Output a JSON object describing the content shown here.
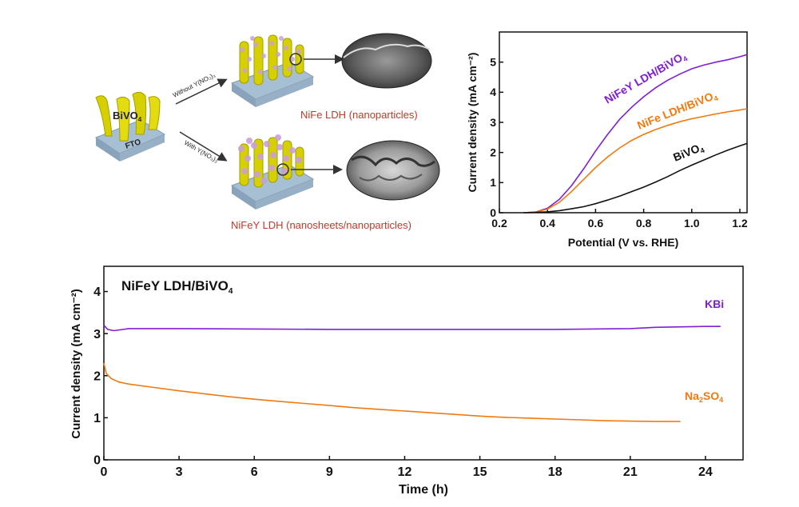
{
  "schematic": {
    "substrate_label": "FTO",
    "bivo4_label": "BiVO",
    "bivo4_sub": "4",
    "arrow_top_label": "Without Y(NO₃)₃",
    "arrow_bottom_label": "With Y(NO₃)₃",
    "nife_caption": "NiFe LDH (nanoparticles)",
    "nifey_caption": "NiFeY LDH (nanosheets/nanoparticles)",
    "colors": {
      "caption": "#c0392b",
      "rod": "#d7d000",
      "substrate": "#a7bfd3"
    }
  },
  "chart_data": [
    {
      "type": "line",
      "xlabel": "Potential (V vs. RHE)",
      "ylabel": "Current density (mA cm⁻²)",
      "xlim": [
        0.2,
        1.23
      ],
      "ylim": [
        0,
        6
      ],
      "xticks": [
        "0.2",
        "0.4",
        "0.6",
        "0.8",
        "1.0",
        "1.2"
      ],
      "yticks": [
        "0",
        "1",
        "2",
        "3",
        "4",
        "5"
      ],
      "series": [
        {
          "name": "NiFeY LDH/BiVO₄",
          "color": "#7f1fd6",
          "x": [
            0.3,
            0.35,
            0.4,
            0.45,
            0.5,
            0.55,
            0.6,
            0.65,
            0.7,
            0.75,
            0.8,
            0.85,
            0.9,
            0.95,
            1.0,
            1.05,
            1.1,
            1.15,
            1.2,
            1.23
          ],
          "y": [
            0,
            0.02,
            0.15,
            0.45,
            0.9,
            1.45,
            2.05,
            2.6,
            3.1,
            3.5,
            3.85,
            4.15,
            4.4,
            4.6,
            4.78,
            4.9,
            5.0,
            5.08,
            5.18,
            5.25
          ]
        },
        {
          "name": "NiFe LDH/BiVO₄",
          "color": "#f07a10",
          "x": [
            0.3,
            0.35,
            0.4,
            0.45,
            0.5,
            0.55,
            0.6,
            0.65,
            0.7,
            0.75,
            0.8,
            0.85,
            0.9,
            0.95,
            1.0,
            1.05,
            1.1,
            1.15,
            1.2,
            1.23
          ],
          "y": [
            0,
            0.02,
            0.12,
            0.35,
            0.7,
            1.1,
            1.5,
            1.85,
            2.15,
            2.4,
            2.6,
            2.76,
            2.9,
            3.02,
            3.12,
            3.2,
            3.28,
            3.35,
            3.41,
            3.45
          ]
        },
        {
          "name": "BiVO₄",
          "color": "#111111",
          "x": [
            0.3,
            0.35,
            0.4,
            0.45,
            0.5,
            0.55,
            0.6,
            0.65,
            0.7,
            0.75,
            0.8,
            0.85,
            0.9,
            0.95,
            1.0,
            1.05,
            1.1,
            1.15,
            1.2,
            1.23
          ],
          "y": [
            0,
            0.01,
            0.03,
            0.07,
            0.13,
            0.2,
            0.3,
            0.42,
            0.55,
            0.7,
            0.85,
            1.02,
            1.2,
            1.4,
            1.58,
            1.75,
            1.92,
            2.08,
            2.22,
            2.3
          ]
        }
      ],
      "labels": [
        {
          "text": "NiFeY LDH/BiVO",
          "sub": "4",
          "color": "#7f1fd6"
        },
        {
          "text": "NiFe LDH/BiVO",
          "sub": "4",
          "color": "#f07a10"
        },
        {
          "text": "BiVO",
          "sub": "4",
          "color": "#111111"
        }
      ]
    },
    {
      "type": "line",
      "title": "NiFeY LDH/BiVO",
      "title_sub": "4",
      "xlabel": "Time (h)",
      "ylabel": "Current density (mA cm⁻²)",
      "xlim": [
        0,
        25.5
      ],
      "ylim": [
        0,
        4.6
      ],
      "xticks": [
        "0",
        "3",
        "6",
        "9",
        "12",
        "15",
        "18",
        "21",
        "24"
      ],
      "yticks": [
        "0",
        "1",
        "2",
        "3",
        "4"
      ],
      "series": [
        {
          "name": "KBi",
          "color": "#7f1fd6",
          "x": [
            0,
            0.15,
            0.4,
            1,
            3,
            6,
            9,
            12,
            15,
            18,
            21,
            22,
            24,
            24.6
          ],
          "y": [
            3.2,
            3.1,
            3.07,
            3.12,
            3.12,
            3.11,
            3.1,
            3.1,
            3.1,
            3.1,
            3.12,
            3.15,
            3.17,
            3.17
          ]
        },
        {
          "name": "Na₂SO₄",
          "color": "#f07a10",
          "x": [
            0,
            0.1,
            0.3,
            0.6,
            1,
            2,
            3,
            4,
            5,
            6,
            7,
            8,
            9,
            10,
            11,
            12,
            13,
            14,
            15,
            16,
            17,
            18,
            19,
            20,
            21,
            22,
            23
          ],
          "y": [
            2.3,
            2.05,
            1.93,
            1.85,
            1.8,
            1.72,
            1.64,
            1.57,
            1.5,
            1.44,
            1.39,
            1.34,
            1.29,
            1.24,
            1.2,
            1.16,
            1.12,
            1.08,
            1.04,
            1.01,
            0.99,
            0.97,
            0.95,
            0.93,
            0.92,
            0.91,
            0.91
          ]
        }
      ],
      "labels": [
        {
          "text": "KBi",
          "sub": "",
          "color": "#7f1fd6"
        },
        {
          "text": "Na",
          "sub": "2",
          "text2": "SO",
          "sub2": "4",
          "color": "#f07a10"
        }
      ]
    }
  ]
}
